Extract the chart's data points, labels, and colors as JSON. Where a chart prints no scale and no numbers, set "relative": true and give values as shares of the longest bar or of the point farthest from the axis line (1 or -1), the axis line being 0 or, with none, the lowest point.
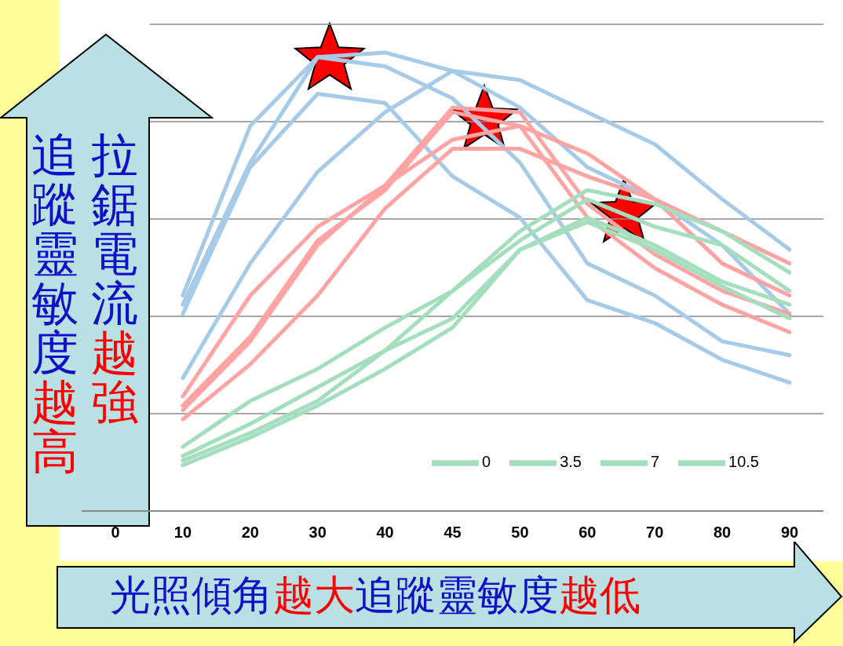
{
  "chart_data": {
    "type": "line",
    "relative": true,
    "categories": [
      "0",
      "10",
      "20",
      "30",
      "40",
      "45",
      "50",
      "60",
      "70",
      "80",
      "90"
    ],
    "grid": "y",
    "legend": "bottom right",
    "line_style": "solid",
    "annotations": [
      "拉鋸電流越強",
      "追蹤靈敏度越高",
      "光照傾角越大追蹤靈敏度越低"
    ],
    "series": [
      {
        "color": "#a6cbe8",
        "values": [
          null,
          0.47,
          0.84,
          0.99,
          1.0,
          0.96,
          0.94,
          0.87,
          0.8,
          0.68,
          0.57
        ]
      },
      {
        "color": "#a6cbe8",
        "values": [
          null,
          0.45,
          0.76,
          0.99,
          0.97,
          0.9,
          0.76,
          0.54,
          0.47,
          0.37,
          0.34
        ]
      },
      {
        "color": "#a6cbe8",
        "values": [
          null,
          0.43,
          0.75,
          0.91,
          0.89,
          0.73,
          0.64,
          0.46,
          0.41,
          0.33,
          0.28
        ]
      },
      {
        "color": "#a6cbe8",
        "values": [
          null,
          0.29,
          0.54,
          0.74,
          0.87,
          0.96,
          0.88,
          0.75,
          0.68,
          0.58,
          0.43
        ]
      },
      {
        "color": "#ffa3a3",
        "values": [
          null,
          0.25,
          0.47,
          0.62,
          0.71,
          0.88,
          0.87,
          0.67,
          0.56,
          0.48,
          0.43
        ]
      },
      {
        "color": "#ffa3a3",
        "values": [
          null,
          0.23,
          0.38,
          0.59,
          0.7,
          0.87,
          0.84,
          0.64,
          0.53,
          0.45,
          0.39
        ]
      },
      {
        "color": "#ffa3a3",
        "values": [
          null,
          0.22,
          0.37,
          0.58,
          0.71,
          0.81,
          0.84,
          0.78,
          0.68,
          0.61,
          0.54
        ]
      },
      {
        "color": "#ffa3a3",
        "values": [
          null,
          0.2,
          0.32,
          0.47,
          0.66,
          0.79,
          0.79,
          0.73,
          0.68,
          0.54,
          0.47
        ]
      },
      {
        "name": "0",
        "color": "#a3dfbd",
        "values": [
          null,
          0.14,
          0.24,
          0.31,
          0.4,
          0.48,
          0.61,
          0.7,
          0.67,
          0.61,
          0.52
        ]
      },
      {
        "name": "3.5",
        "color": "#a3dfbd",
        "values": [
          null,
          0.12,
          0.19,
          0.27,
          0.35,
          0.48,
          0.59,
          0.68,
          0.62,
          0.58,
          0.48
        ]
      },
      {
        "name": "7",
        "color": "#a3dfbd",
        "values": [
          null,
          0.11,
          0.17,
          0.24,
          0.35,
          0.42,
          0.57,
          0.64,
          0.58,
          0.5,
          0.45
        ]
      },
      {
        "name": "10.5",
        "color": "#a3dfbd",
        "values": [
          null,
          0.1,
          0.16,
          0.23,
          0.31,
          0.4,
          0.57,
          0.63,
          0.57,
          0.49,
          0.42
        ]
      }
    ]
  }
}
